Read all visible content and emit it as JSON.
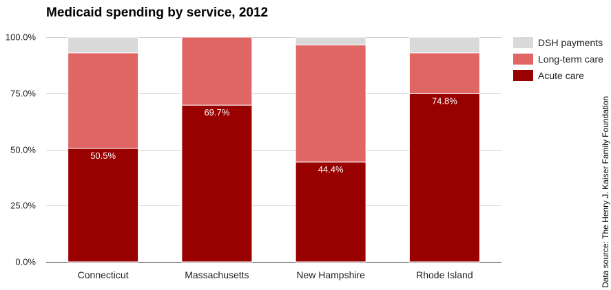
{
  "chart_data": {
    "type": "bar",
    "stacked": true,
    "title": "Medicaid spending by service, 2012",
    "categories": [
      "Connecticut",
      "Massachusetts",
      "New Hampshire",
      "Rhode Island"
    ],
    "series": [
      {
        "name": "Acute care",
        "color": "#990000",
        "values": [
          50.5,
          69.7,
          44.4,
          74.8
        ],
        "labels": [
          "50.5%",
          "69.7%",
          "44.4%",
          "74.8%"
        ]
      },
      {
        "name": "Long-term care",
        "color": "#e06666",
        "values": [
          42.5,
          30.3,
          52.1,
          18.2
        ]
      },
      {
        "name": "DSH payments",
        "color": "#d9d9d9",
        "values": [
          7.0,
          0.0,
          3.5,
          7.0
        ]
      }
    ],
    "ylim": [
      0,
      100
    ],
    "yticks": [
      "0.0%",
      "25.0%",
      "50.0%",
      "75.0%",
      "100.0%"
    ],
    "ytick_values": [
      0,
      25,
      50,
      75,
      100
    ],
    "grid": true,
    "legend": {
      "placement": "top-right",
      "order": [
        "DSH payments",
        "Long-term care",
        "Acute care"
      ]
    },
    "source": "Data source: The Henry J. Kaiser Family Foundation"
  }
}
